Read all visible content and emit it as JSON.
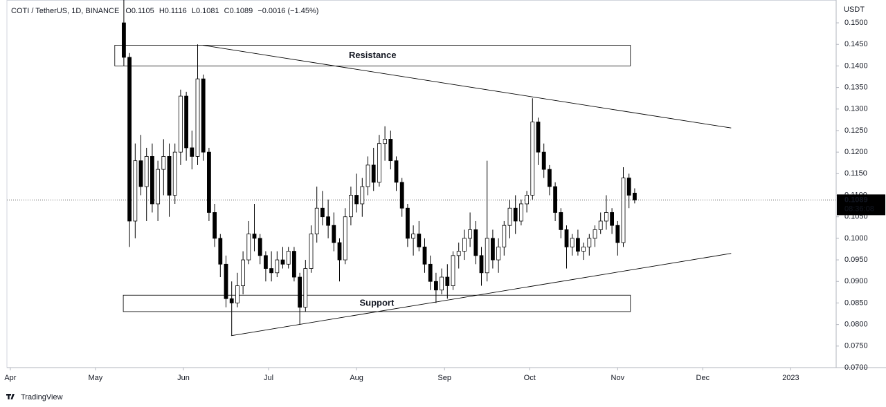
{
  "chart_data": {
    "type": "candlestick",
    "header": {
      "symbol": "COTI / TetherUS, 1D, BINANCE",
      "open": "O0.1105",
      "high": "H0.1116",
      "low": "L0.1081",
      "close": "C0.1089",
      "change": "−0.0016 (−1.45%)"
    },
    "y_unit": "USDT",
    "last_price": {
      "value": 0.1089,
      "label": "0.1089",
      "countdown": "08:36:08"
    },
    "up_color": "#ffffff",
    "down_color": "#000000",
    "border_color": "#000000",
    "xlim": [
      -1.2,
      291
    ],
    "ylim": [
      0.07,
      0.1553
    ],
    "xticks": [
      {
        "value": 0,
        "label": "Apr"
      },
      {
        "value": 30,
        "label": "May"
      },
      {
        "value": 61,
        "label": "Jun"
      },
      {
        "value": 91,
        "label": "Jul"
      },
      {
        "value": 122,
        "label": "Aug"
      },
      {
        "value": 153,
        "label": "Sep"
      },
      {
        "value": 183,
        "label": "Oct"
      },
      {
        "value": 214,
        "label": "Nov"
      },
      {
        "value": 244,
        "label": "Dec"
      },
      {
        "value": 275,
        "label": "2023"
      }
    ],
    "yticks": [
      {
        "value": 0.15,
        "label": "0.1500"
      },
      {
        "value": 0.145,
        "label": "0.1450"
      },
      {
        "value": 0.14,
        "label": "0.1400"
      },
      {
        "value": 0.135,
        "label": "0.1350"
      },
      {
        "value": 0.13,
        "label": "0.1300"
      },
      {
        "value": 0.125,
        "label": "0.1250"
      },
      {
        "value": 0.12,
        "label": "0.1200"
      },
      {
        "value": 0.115,
        "label": "0.1150"
      },
      {
        "value": 0.11,
        "label": "0.1100"
      },
      {
        "value": 0.105,
        "label": "0.1050"
      },
      {
        "value": 0.1,
        "label": "0.1000"
      },
      {
        "value": 0.095,
        "label": "0.0950"
      },
      {
        "value": 0.09,
        "label": "0.0900"
      },
      {
        "value": 0.085,
        "label": "0.0850"
      },
      {
        "value": 0.08,
        "label": "0.0800"
      },
      {
        "value": 0.075,
        "label": "0.0750"
      },
      {
        "value": 0.07,
        "label": "0.0700"
      }
    ],
    "zones": [
      {
        "label": "Resistance",
        "x": [
          36.8,
          218.5
        ],
        "y": [
          0.14,
          0.1448
        ]
      },
      {
        "label": "Support",
        "x": [
          39.8,
          218.5
        ],
        "y": [
          0.083,
          0.0868
        ]
      }
    ],
    "trendlines": [
      {
        "x": [
          67.8,
          254
        ],
        "y": [
          0.1448,
          0.1256
        ]
      },
      {
        "x": [
          77.8,
          254
        ],
        "y": [
          0.0774,
          0.0965
        ]
      }
    ],
    "x": [
      40,
      42,
      44,
      46,
      48,
      50,
      52,
      54,
      56,
      58,
      60,
      62,
      64,
      66,
      68,
      70,
      72,
      74,
      76,
      78,
      80,
      82,
      84,
      86,
      88,
      90,
      92,
      94,
      96,
      98,
      100,
      102,
      104,
      106,
      108,
      110,
      112,
      114,
      116,
      118,
      120,
      122,
      124,
      126,
      128,
      130,
      132,
      134,
      136,
      138,
      140,
      142,
      144,
      146,
      148,
      150,
      152,
      154,
      156,
      158,
      160,
      162,
      164,
      166,
      168,
      170,
      172,
      174,
      176,
      178,
      180,
      182,
      184,
      186,
      188,
      190,
      192,
      194,
      196,
      198,
      200,
      202,
      204,
      206,
      208,
      210,
      212,
      214,
      216,
      218,
      220
    ],
    "ohlc": [
      [
        0.15,
        0.1553,
        0.14,
        0.142
      ],
      [
        0.142,
        0.143,
        0.098,
        0.104
      ],
      [
        0.104,
        0.122,
        0.1,
        0.118
      ],
      [
        0.118,
        0.124,
        0.11,
        0.112
      ],
      [
        0.112,
        0.121,
        0.104,
        0.119
      ],
      [
        0.119,
        0.122,
        0.106,
        0.108
      ],
      [
        0.108,
        0.118,
        0.104,
        0.116
      ],
      [
        0.116,
        0.123,
        0.11,
        0.119
      ],
      [
        0.119,
        0.122,
        0.105,
        0.11
      ],
      [
        0.11,
        0.122,
        0.108,
        0.12
      ],
      [
        0.12,
        0.1345,
        0.117,
        0.133
      ],
      [
        0.133,
        0.134,
        0.118,
        0.121
      ],
      [
        0.121,
        0.125,
        0.116,
        0.119
      ],
      [
        0.119,
        0.145,
        0.117,
        0.137
      ],
      [
        0.137,
        0.138,
        0.118,
        0.12
      ],
      [
        0.12,
        0.121,
        0.104,
        0.106
      ],
      [
        0.106,
        0.108,
        0.098,
        0.1
      ],
      [
        0.1,
        0.101,
        0.091,
        0.094
      ],
      [
        0.094,
        0.096,
        0.084,
        0.086
      ],
      [
        0.086,
        0.09,
        0.0775,
        0.085
      ],
      [
        0.085,
        0.092,
        0.084,
        0.089
      ],
      [
        0.089,
        0.097,
        0.087,
        0.095
      ],
      [
        0.095,
        0.104,
        0.094,
        0.101
      ],
      [
        0.101,
        0.108,
        0.097,
        0.1
      ],
      [
        0.1,
        0.101,
        0.094,
        0.096
      ],
      [
        0.096,
        0.097,
        0.09,
        0.093
      ],
      [
        0.093,
        0.097,
        0.09,
        0.092
      ],
      [
        0.092,
        0.097,
        0.091,
        0.095
      ],
      [
        0.095,
        0.098,
        0.093,
        0.094
      ],
      [
        0.094,
        0.098,
        0.093,
        0.097
      ],
      [
        0.097,
        0.098,
        0.09,
        0.091
      ],
      [
        0.091,
        0.092,
        0.08,
        0.084
      ],
      [
        0.084,
        0.095,
        0.083,
        0.093
      ],
      [
        0.093,
        0.103,
        0.092,
        0.101
      ],
      [
        0.101,
        0.112,
        0.099,
        0.107
      ],
      [
        0.107,
        0.111,
        0.103,
        0.105
      ],
      [
        0.105,
        0.109,
        0.1,
        0.103
      ],
      [
        0.103,
        0.106,
        0.097,
        0.099
      ],
      [
        0.099,
        0.1,
        0.09,
        0.095
      ],
      [
        0.095,
        0.107,
        0.094,
        0.105
      ],
      [
        0.105,
        0.112,
        0.103,
        0.11
      ],
      [
        0.11,
        0.115,
        0.106,
        0.108
      ],
      [
        0.108,
        0.114,
        0.105,
        0.112
      ],
      [
        0.112,
        0.119,
        0.11,
        0.117
      ],
      [
        0.117,
        0.121,
        0.111,
        0.113
      ],
      [
        0.113,
        0.124,
        0.112,
        0.122
      ],
      [
        0.122,
        0.126,
        0.118,
        0.123
      ],
      [
        0.123,
        0.125,
        0.116,
        0.118
      ],
      [
        0.118,
        0.119,
        0.111,
        0.113
      ],
      [
        0.113,
        0.114,
        0.105,
        0.107
      ],
      [
        0.107,
        0.108,
        0.098,
        0.1
      ],
      [
        0.1,
        0.103,
        0.096,
        0.101
      ],
      [
        0.101,
        0.104,
        0.097,
        0.098
      ],
      [
        0.098,
        0.1,
        0.092,
        0.094
      ],
      [
        0.094,
        0.096,
        0.088,
        0.09
      ],
      [
        0.09,
        0.092,
        0.085,
        0.088
      ],
      [
        0.088,
        0.093,
        0.087,
        0.091
      ],
      [
        0.091,
        0.094,
        0.086,
        0.089
      ],
      [
        0.089,
        0.097,
        0.088,
        0.096
      ],
      [
        0.096,
        0.099,
        0.093,
        0.097
      ],
      [
        0.097,
        0.102,
        0.095,
        0.1
      ],
      [
        0.1,
        0.106,
        0.098,
        0.102
      ],
      [
        0.102,
        0.104,
        0.094,
        0.096
      ],
      [
        0.096,
        0.098,
        0.089,
        0.092
      ],
      [
        0.092,
        0.118,
        0.09,
        0.1
      ],
      [
        0.1,
        0.102,
        0.093,
        0.095
      ],
      [
        0.095,
        0.1,
        0.092,
        0.098
      ],
      [
        0.098,
        0.104,
        0.096,
        0.103
      ],
      [
        0.103,
        0.109,
        0.1,
        0.107
      ],
      [
        0.107,
        0.11,
        0.101,
        0.104
      ],
      [
        0.104,
        0.109,
        0.103,
        0.108
      ],
      [
        0.108,
        0.111,
        0.106,
        0.11
      ],
      [
        0.11,
        0.1325,
        0.109,
        0.127
      ],
      [
        0.127,
        0.128,
        0.117,
        0.12
      ],
      [
        0.12,
        0.122,
        0.114,
        0.116
      ],
      [
        0.116,
        0.117,
        0.11,
        0.112
      ],
      [
        0.112,
        0.113,
        0.104,
        0.106
      ],
      [
        0.106,
        0.107,
        0.1,
        0.102
      ],
      [
        0.102,
        0.103,
        0.093,
        0.098
      ],
      [
        0.098,
        0.101,
        0.096,
        0.1
      ],
      [
        0.1,
        0.102,
        0.096,
        0.097
      ],
      [
        0.097,
        0.099,
        0.095,
        0.098
      ],
      [
        0.098,
        0.101,
        0.096,
        0.1
      ],
      [
        0.1,
        0.103,
        0.098,
        0.102
      ],
      [
        0.102,
        0.106,
        0.101,
        0.104
      ],
      [
        0.104,
        0.11,
        0.102,
        0.106
      ],
      [
        0.106,
        0.107,
        0.101,
        0.103
      ],
      [
        0.103,
        0.104,
        0.096,
        0.099
      ],
      [
        0.099,
        0.1165,
        0.098,
        0.114
      ],
      [
        0.114,
        0.115,
        0.107,
        0.11
      ],
      [
        0.1105,
        0.1116,
        0.1081,
        0.1089
      ]
    ],
    "brand": "TradingView"
  }
}
